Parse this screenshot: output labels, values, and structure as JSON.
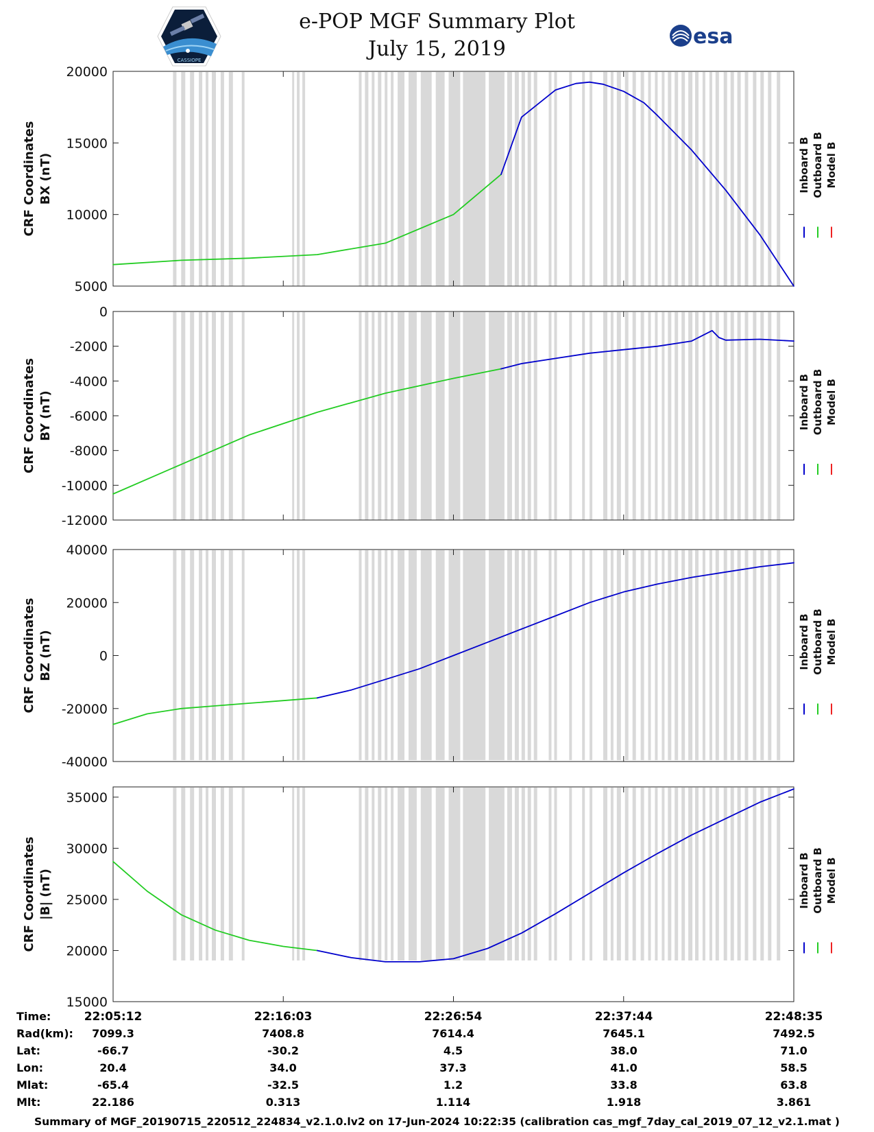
{
  "header": {
    "title_line1": "e-POP MGF Summary Plot",
    "title_line2": "July 15, 2019",
    "left_logo_text": "CASSIOPE",
    "right_logo_text": "esa"
  },
  "colors": {
    "inboard": "#0000cc",
    "outboard": "#22cc22",
    "model": "#ee2222",
    "gap": "#d9d9d9"
  },
  "chart_data": [
    {
      "type": "line",
      "ylabel_line1": "CRF Coordinates",
      "ylabel_line2": "BX (nT)",
      "ylim": [
        5000,
        20000
      ],
      "yticks": [
        "5000",
        "10000",
        "15000",
        "20000"
      ],
      "legend": [
        "Inboard B",
        "Outboard B",
        "Model B"
      ],
      "series": [
        {
          "name": "Outboard B",
          "x": [
            0,
            0.1,
            0.2,
            0.3,
            0.4,
            0.5,
            0.57
          ],
          "y": [
            6500,
            6800,
            6950,
            7200,
            8000,
            10000,
            12800
          ]
        },
        {
          "name": "Inboard B",
          "x": [
            0.57,
            0.6,
            0.65,
            0.68,
            0.7,
            0.72,
            0.75,
            0.78,
            0.8,
            0.85,
            0.9,
            0.95,
            1.0
          ],
          "y": [
            12800,
            16800,
            18700,
            19150,
            19250,
            19100,
            18600,
            17800,
            16900,
            14500,
            11700,
            8600,
            5000
          ]
        }
      ]
    },
    {
      "type": "line",
      "ylabel_line1": "CRF Coordinates",
      "ylabel_line2": "BY (nT)",
      "ylim": [
        -12000,
        0
      ],
      "yticks": [
        "-12000",
        "-10000",
        "-8000",
        "-6000",
        "-4000",
        "-2000",
        "0"
      ],
      "legend": [
        "Inboard B",
        "Outboard B",
        "Model B"
      ],
      "series": [
        {
          "name": "Outboard B",
          "x": [
            0,
            0.1,
            0.2,
            0.3,
            0.4,
            0.5,
            0.57
          ],
          "y": [
            -10500,
            -8800,
            -7100,
            -5800,
            -4700,
            -3850,
            -3300
          ]
        },
        {
          "name": "Inboard B",
          "x": [
            0.57,
            0.6,
            0.65,
            0.7,
            0.75,
            0.8,
            0.85,
            0.88,
            0.89,
            0.9,
            0.95,
            1.0
          ],
          "y": [
            -3300,
            -3000,
            -2700,
            -2400,
            -2200,
            -2000,
            -1700,
            -1100,
            -1500,
            -1650,
            -1600,
            -1700
          ]
        }
      ]
    },
    {
      "type": "line",
      "ylabel_line1": "CRF Coordinates",
      "ylabel_line2": "BZ (nT)",
      "ylim": [
        -40000,
        40000
      ],
      "yticks": [
        "-40000",
        "-20000",
        "0",
        "20000",
        "40000"
      ],
      "legend": [
        "Inboard B",
        "Outboard B",
        "Model B"
      ],
      "series": [
        {
          "name": "Outboard B",
          "x": [
            0,
            0.05,
            0.1,
            0.15,
            0.2,
            0.25,
            0.3
          ],
          "y": [
            -26000,
            -22000,
            -20000,
            -19000,
            -18000,
            -17000,
            -16000
          ]
        },
        {
          "name": "Inboard B",
          "x": [
            0.3,
            0.35,
            0.4,
            0.45,
            0.5,
            0.55,
            0.6,
            0.65,
            0.7,
            0.75,
            0.8,
            0.85,
            0.9,
            0.95,
            1.0
          ],
          "y": [
            -16000,
            -13000,
            -9000,
            -5000,
            0,
            5000,
            10000,
            15000,
            20000,
            24000,
            27000,
            29500,
            31500,
            33500,
            35000
          ]
        }
      ]
    },
    {
      "type": "line",
      "ylabel_line1": "CRF Coordinates",
      "ylabel_line2": "|B| (nT)",
      "ylim": [
        15000,
        36000
      ],
      "yticks": [
        "15000",
        "20000",
        "25000",
        "30000",
        "35000"
      ],
      "legend": [
        "Inboard B",
        "Outboard B",
        "Model B"
      ],
      "series": [
        {
          "name": "Outboard B",
          "x": [
            0,
            0.05,
            0.1,
            0.15,
            0.2,
            0.25,
            0.3
          ],
          "y": [
            28700,
            25800,
            23500,
            22000,
            21000,
            20400,
            20000
          ]
        },
        {
          "name": "Inboard B",
          "x": [
            0.3,
            0.35,
            0.4,
            0.45,
            0.5,
            0.55,
            0.6,
            0.65,
            0.7,
            0.75,
            0.8,
            0.85,
            0.9,
            0.95,
            1.0
          ],
          "y": [
            20000,
            19300,
            18900,
            18900,
            19200,
            20200,
            21700,
            23600,
            25600,
            27600,
            29500,
            31300,
            32900,
            34500,
            35800
          ]
        }
      ]
    }
  ],
  "gap_bands": [
    [
      0.088,
      0.093
    ],
    [
      0.1,
      0.106
    ],
    [
      0.113,
      0.119
    ],
    [
      0.126,
      0.131
    ],
    [
      0.136,
      0.14
    ],
    [
      0.145,
      0.151
    ],
    [
      0.158,
      0.163
    ],
    [
      0.17,
      0.176
    ],
    [
      0.189,
      0.193
    ],
    [
      0.263,
      0.266
    ],
    [
      0.27,
      0.274
    ],
    [
      0.278,
      0.282
    ],
    [
      0.361,
      0.365
    ],
    [
      0.37,
      0.375
    ],
    [
      0.38,
      0.384
    ],
    [
      0.389,
      0.394
    ],
    [
      0.399,
      0.403
    ],
    [
      0.408,
      0.412
    ],
    [
      0.418,
      0.428
    ],
    [
      0.434,
      0.446
    ],
    [
      0.452,
      0.468
    ],
    [
      0.474,
      0.487
    ],
    [
      0.493,
      0.51
    ],
    [
      0.514,
      0.547
    ],
    [
      0.552,
      0.575
    ],
    [
      0.579,
      0.586
    ],
    [
      0.59,
      0.596
    ],
    [
      0.6,
      0.605
    ],
    [
      0.609,
      0.614
    ],
    [
      0.618,
      0.623
    ],
    [
      0.64,
      0.644
    ],
    [
      0.648,
      0.652
    ],
    [
      0.67,
      0.674
    ],
    [
      0.689,
      0.693
    ],
    [
      0.7,
      0.704
    ],
    [
      0.72,
      0.726
    ],
    [
      0.731,
      0.735
    ],
    [
      0.74,
      0.746
    ],
    [
      0.752,
      0.757
    ],
    [
      0.763,
      0.768
    ],
    [
      0.775,
      0.78
    ],
    [
      0.786,
      0.79
    ],
    [
      0.796,
      0.8
    ],
    [
      0.806,
      0.81
    ],
    [
      0.815,
      0.82
    ],
    [
      0.825,
      0.83
    ],
    [
      0.835,
      0.84
    ],
    [
      0.845,
      0.851
    ],
    [
      0.855,
      0.86
    ],
    [
      0.866,
      0.87
    ],
    [
      0.876,
      0.88
    ],
    [
      0.885,
      0.89
    ],
    [
      0.897,
      0.902
    ],
    [
      0.907,
      0.912
    ],
    [
      0.917,
      0.922
    ],
    [
      0.928,
      0.933
    ],
    [
      0.94,
      0.945
    ],
    [
      0.951,
      0.956
    ],
    [
      0.962,
      0.967
    ],
    [
      0.975,
      0.98
    ]
  ],
  "table": {
    "row_labels": [
      "Time:",
      "Rad(km):",
      "Lat:",
      "Lon:",
      "Mlat:",
      "Mlt:"
    ],
    "columns": [
      [
        "22:05:12",
        "7099.3",
        "-66.7",
        "20.4",
        "-65.4",
        "22.186"
      ],
      [
        "22:16:03",
        "7408.8",
        "-30.2",
        "34.0",
        "-32.5",
        "0.313"
      ],
      [
        "22:26:54",
        "7614.4",
        "4.5",
        "37.3",
        "1.2",
        "1.114"
      ],
      [
        "22:37:44",
        "7645.1",
        "38.0",
        "41.0",
        "33.8",
        "1.918"
      ],
      [
        "22:48:35",
        "7492.5",
        "71.0",
        "58.5",
        "63.8",
        "3.861"
      ]
    ]
  },
  "footer": "Summary of MGF_20190715_220512_224834_v2.1.0.lv2 on 17-Jun-2024 10:22:35 (calibration cas_mgf_7day_cal_2019_07_12_v2.1.mat )"
}
